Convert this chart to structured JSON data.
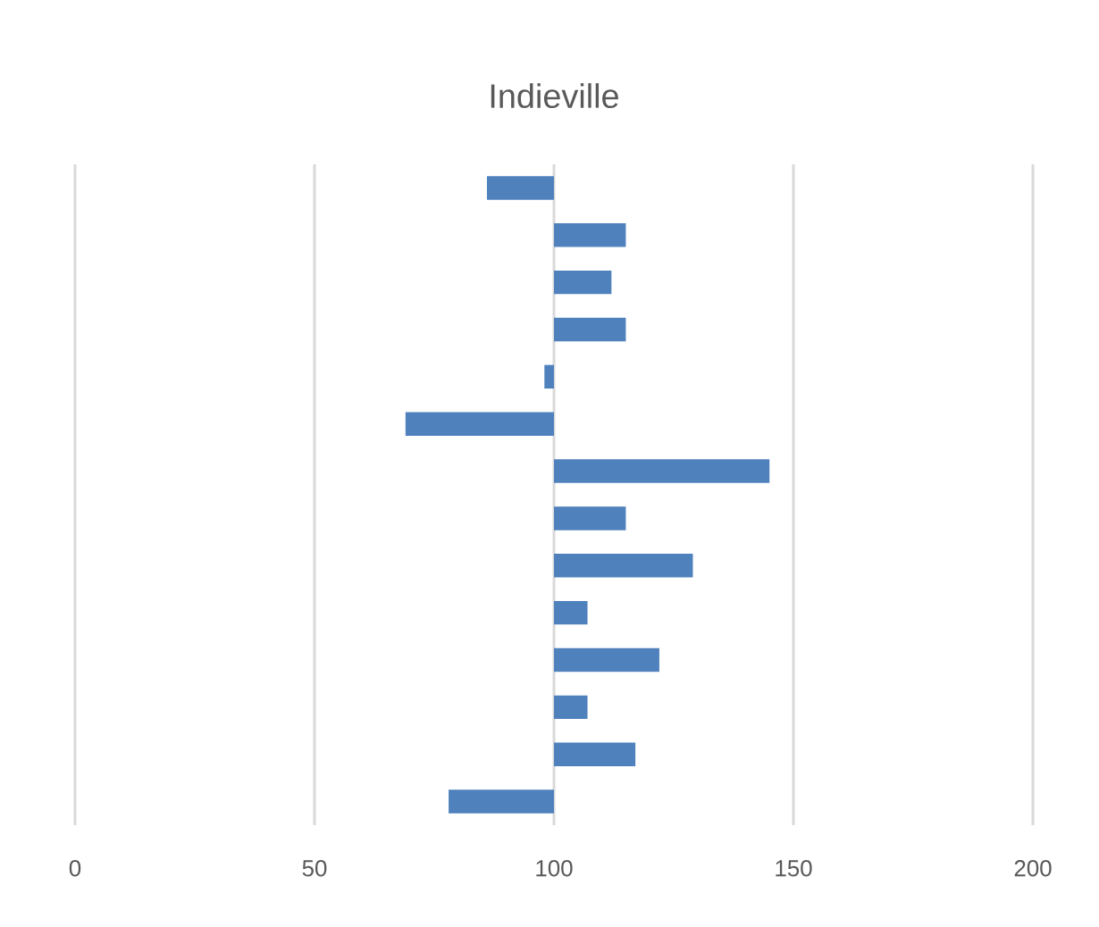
{
  "chart_data": {
    "type": "bar",
    "orientation": "horizontal",
    "title": "Indieville",
    "categories": [
      null,
      null,
      null,
      null,
      null,
      null,
      null,
      null,
      null,
      null,
      null,
      null,
      null,
      null
    ],
    "base": [
      100,
      100,
      100,
      100,
      100,
      100,
      100,
      100,
      100,
      100,
      100,
      100,
      100,
      100
    ],
    "values": [
      -14,
      15,
      12,
      15,
      -2,
      -31,
      45,
      15,
      29,
      7,
      22,
      7,
      17,
      -22
    ],
    "color": "#4f81bd",
    "xlim": [
      0,
      200
    ],
    "xticks": [
      0,
      50,
      100,
      150,
      200
    ],
    "grid": "x"
  }
}
